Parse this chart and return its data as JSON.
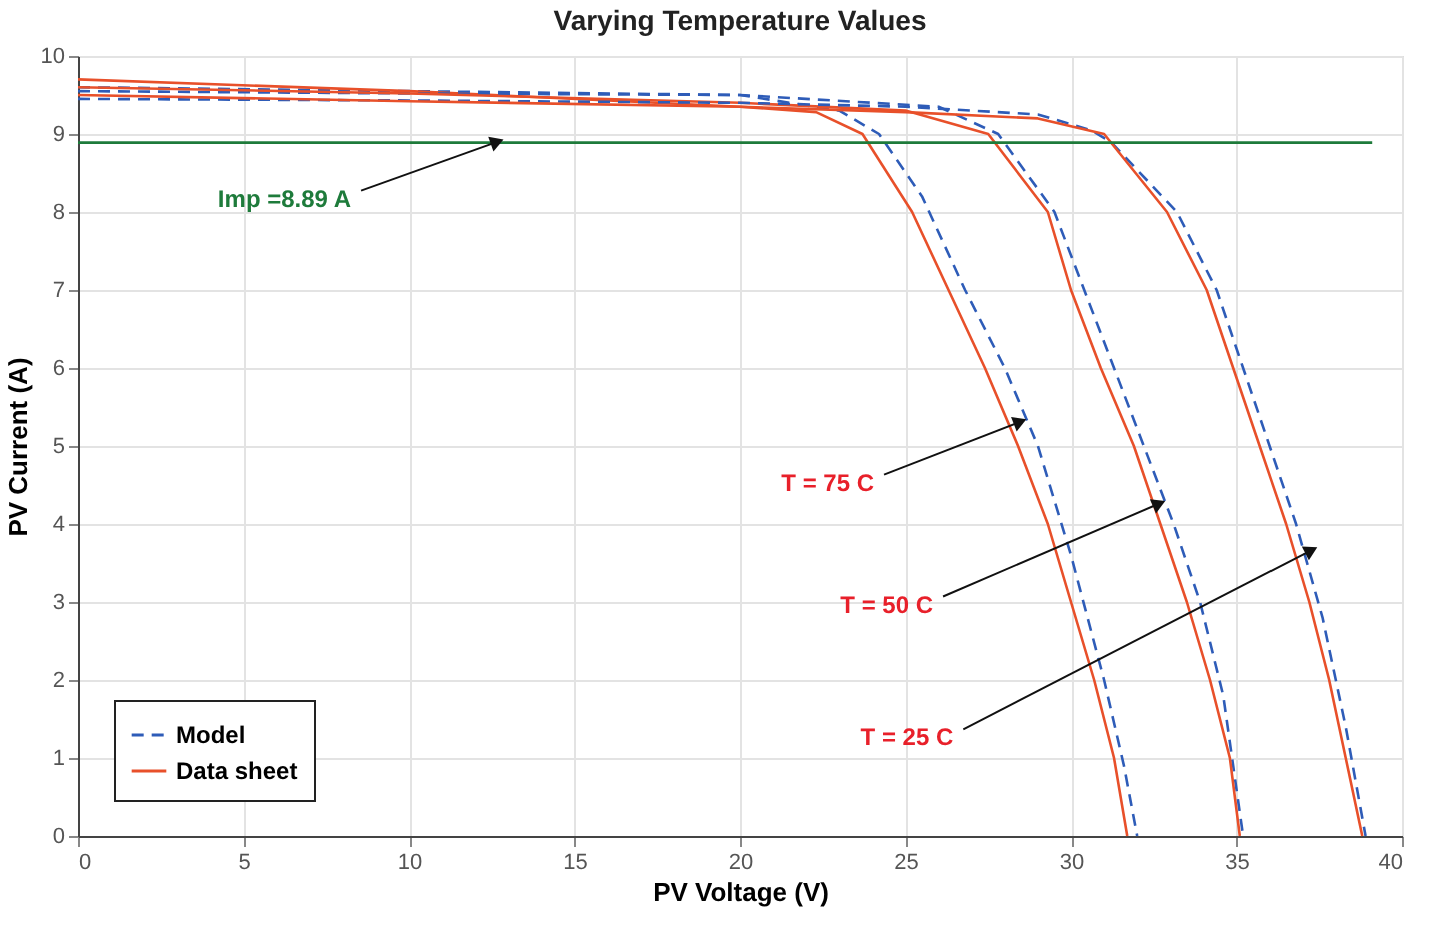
{
  "chart_data": {
    "type": "line",
    "title": "Varying Temperature Values",
    "xlabel": "PV Voltage (V)",
    "ylabel": "PV Current (A)",
    "xlim": [
      0,
      40
    ],
    "ylim": [
      0,
      10
    ],
    "xticks": [
      0,
      5,
      10,
      15,
      20,
      25,
      30,
      35,
      40
    ],
    "yticks": [
      0,
      1,
      2,
      3,
      4,
      5,
      6,
      7,
      8,
      9,
      10
    ],
    "grid": true,
    "legend": "bottom left",
    "series": [
      {
        "name": "Model",
        "color": "#2e5cb8",
        "line_style": "dashed",
        "x": [
          0,
          10,
          20,
          23,
          24.2,
          25.5,
          26.8,
          28,
          29,
          30,
          31,
          31.6,
          32
        ],
        "values": [
          9.6,
          9.55,
          9.5,
          9.3,
          9.0,
          8.2,
          7.0,
          6.0,
          5.0,
          3.6,
          2.0,
          0.9,
          0
        ]
      },
      {
        "name": "Data sheet",
        "color": "#e8502a",
        "line_style": "solid",
        "x": [
          0,
          10,
          20,
          22.3,
          23.7,
          25.2,
          26.3,
          27.4,
          28.4,
          29.3,
          30,
          30.7,
          31.3,
          31.7
        ],
        "values": [
          9.7,
          9.55,
          9.35,
          9.28,
          9.0,
          8.0,
          7.0,
          6.0,
          5.0,
          4.0,
          3.0,
          2.0,
          1.0,
          0
        ]
      },
      {
        "color": "#2e5cb8",
        "line_style": "dashed",
        "x": [
          0,
          10,
          20,
          26,
          27.8,
          29.5,
          30.4,
          31.3,
          32.2,
          33.1,
          33.9,
          34.6,
          35.2
        ],
        "values": [
          9.55,
          9.52,
          9.5,
          9.35,
          9.0,
          8.0,
          7.0,
          6.0,
          5.0,
          4.0,
          3.0,
          1.8,
          0
        ]
      },
      {
        "color": "#e8502a",
        "line_style": "solid",
        "x": [
          0,
          10,
          20,
          25,
          27.5,
          29.3,
          30.0,
          30.9,
          31.9,
          32.7,
          33.5,
          34.2,
          34.8,
          35.1
        ],
        "values": [
          9.6,
          9.52,
          9.4,
          9.3,
          9.0,
          8.0,
          7.0,
          6.0,
          5.0,
          4.0,
          3.0,
          2.0,
          1.0,
          0
        ]
      },
      {
        "color": "#2e5cb8",
        "line_style": "dashed",
        "x": [
          0,
          10,
          20,
          25,
          29,
          30.6,
          31.2,
          33.2,
          34.4,
          35.2,
          36.0,
          36.8,
          37.6,
          38.3,
          38.9
        ],
        "values": [
          9.45,
          9.43,
          9.4,
          9.35,
          9.25,
          9.05,
          8.9,
          8.0,
          7.0,
          6.0,
          5.0,
          4.0,
          2.8,
          1.4,
          0
        ]
      },
      {
        "color": "#e8502a",
        "line_style": "solid",
        "x": [
          0,
          10,
          20,
          25,
          29,
          31.0,
          32.9,
          34.1,
          34.9,
          35.7,
          36.5,
          37.2,
          37.8,
          38.3,
          38.8
        ],
        "values": [
          9.5,
          9.42,
          9.35,
          9.28,
          9.2,
          9.0,
          8.0,
          7.0,
          6.0,
          5.0,
          4.0,
          3.0,
          2.0,
          1.0,
          0
        ]
      },
      {
        "color": "#1e7b3b",
        "line_style": "solid",
        "x": [
          0,
          39.1
        ],
        "values": [
          8.89,
          8.89
        ]
      }
    ],
    "annotations": [
      {
        "text": "Imp =8.89 A",
        "x": 12.6,
        "y": 8.89
      },
      {
        "text": "T = 75 C",
        "x": 28.4,
        "y": 5.3
      },
      {
        "text": "T = 50 C",
        "x": 32.6,
        "y": 4.25
      },
      {
        "text": "T = 25 C",
        "x": 37.2,
        "y": 3.65
      }
    ]
  }
}
